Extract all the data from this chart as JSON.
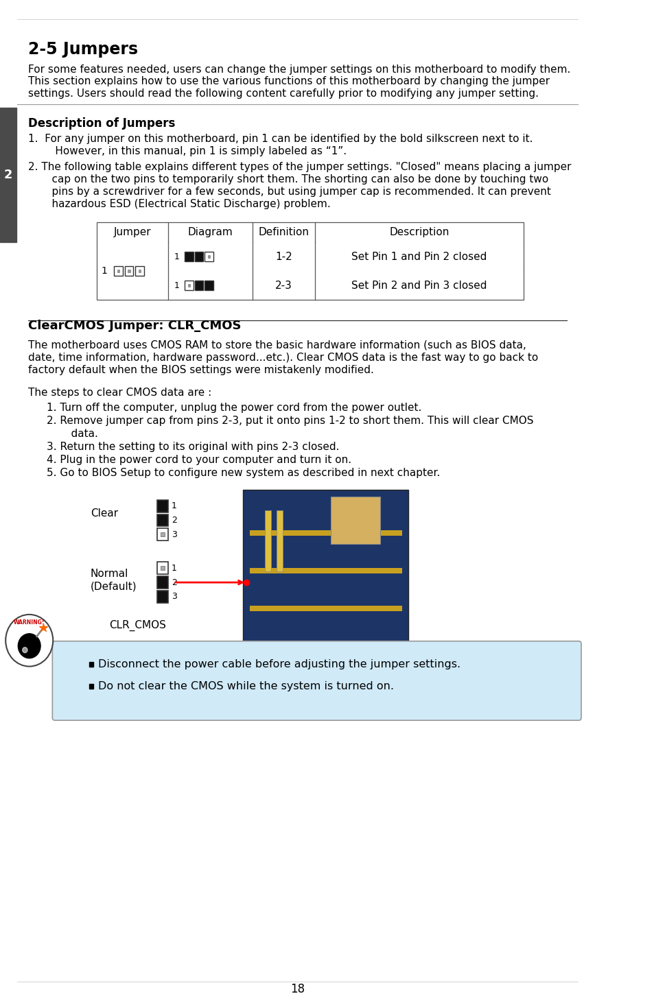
{
  "title": "2-5 Jumpers",
  "intro_line1": "For some features needed, users can change the jumper settings on this motherboard to modify them.",
  "intro_line2": "This section explains how to use the various functions of this motherboard by changing the jumper",
  "intro_line3": "settings. Users should read the following content carefully prior to modifying any jumper setting.",
  "section_label": "2",
  "desc_title": "Description of Jumpers",
  "desc1_line1": "1.  For any jumper on this motherboard, pin 1 can be identified by the bold silkscreen next to it.",
  "desc1_line2": "     However, in this manual, pin 1 is simply labeled as “1”.",
  "desc2_line1": "2. The following table explains different types of the jumper settings. \"Closed\" means placing a jumper",
  "desc2_line2": "    cap on the two pins to temporarily short them. The shorting can also be done by touching two",
  "desc2_line3": "    pins by a screwdriver for a few seconds, but using jumper cap is recommended. It can prevent",
  "desc2_line4": "    hazardous ESD (Electrical Static Discharge) problem.",
  "table_headers": [
    "Jumper",
    "Diagram",
    "Definition",
    "Description"
  ],
  "table_row1_def": "1-2",
  "table_row1_desc": "Set Pin 1 and Pin 2 closed",
  "table_row2_def": "2-3",
  "table_row2_desc": "Set Pin 2 and Pin 3 closed",
  "clr_cmos_title": "ClearCMOS Jumper: CLR_CMOS",
  "clr_line1": "The motherboard uses CMOS RAM to store the basic hardware information (such as BIOS data,",
  "clr_line2": "date, time information, hardware password...etc.). Clear CMOS data is the fast way to go back to",
  "clr_line3": "factory default when the BIOS settings were mistakenly modified.",
  "steps_intro": "The steps to clear CMOS data are :",
  "step1": "1. Turn off the computer, unplug the power cord from the power outlet.",
  "step2a": "2. Remove jumper cap from pins 2-3, put it onto pins 1-2 to short them. This will clear CMOS",
  "step2b": "    data.",
  "step3": "3. Return the setting to its original with pins 2-3 closed.",
  "step4": "4. Plug in the power cord to your computer and turn it on.",
  "step5": "5. Go to BIOS Setup to configure new system as described in next chapter.",
  "label_clear": "Clear",
  "label_normal": "Normal",
  "label_default": "(Default)",
  "label_clr_cmos": "CLR_CMOS",
  "warn_bullet1": "Disconnect the power cable before adjusting the jumper settings.",
  "warn_bullet2": "Do not clear the CMOS while the system is turned on.",
  "page_number": "18",
  "bg_color": "#ffffff",
  "text_color": "#000000",
  "sidebar_color": "#4a4a4a",
  "warn_box_color": "#d0eaf8",
  "warn_box_border": "#999999",
  "table_border": "#555555",
  "black": "#000000",
  "dark_gray": "#222222"
}
